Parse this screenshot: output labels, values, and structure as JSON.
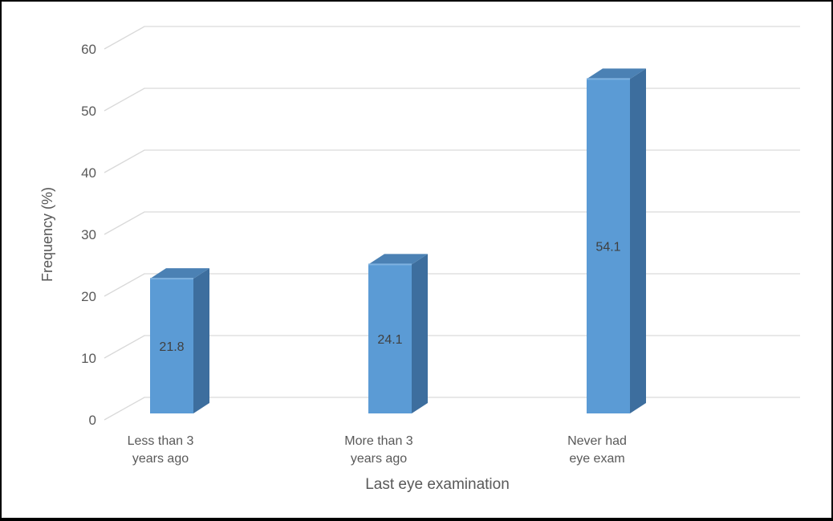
{
  "window": {
    "background": "#ffffff",
    "border_color": "#000000"
  },
  "chart_data": {
    "type": "bar",
    "style": "3d-column",
    "title": "",
    "xlabel": "Last eye examination",
    "ylabel": "Frequency (%)",
    "categories": [
      "Less than 3 years ago",
      "More than 3 years ago",
      "Never had eye exam"
    ],
    "category_lines": [
      [
        "Less than 3",
        "years ago"
      ],
      [
        "More than 3",
        "years ago"
      ],
      [
        "Never had",
        "eye exam"
      ]
    ],
    "values": [
      21.8,
      24.1,
      54.1
    ],
    "data_labels": [
      "21.8",
      "24.1",
      "54.1"
    ],
    "ylim": [
      0,
      60
    ],
    "ytick_interval": 10,
    "yticks": [
      "0",
      "10",
      "20",
      "30",
      "40",
      "50",
      "60"
    ],
    "grid": true,
    "legend": "none",
    "colors": {
      "bar_front": "#5B9BD5",
      "bar_side": "#3D6E9E",
      "bar_top": "#4B81B4",
      "bar_top_highlight": "#7FB2E0",
      "gridline": "#D9D9D9",
      "axis_text": "#595959",
      "data_label": "#404040"
    }
  }
}
